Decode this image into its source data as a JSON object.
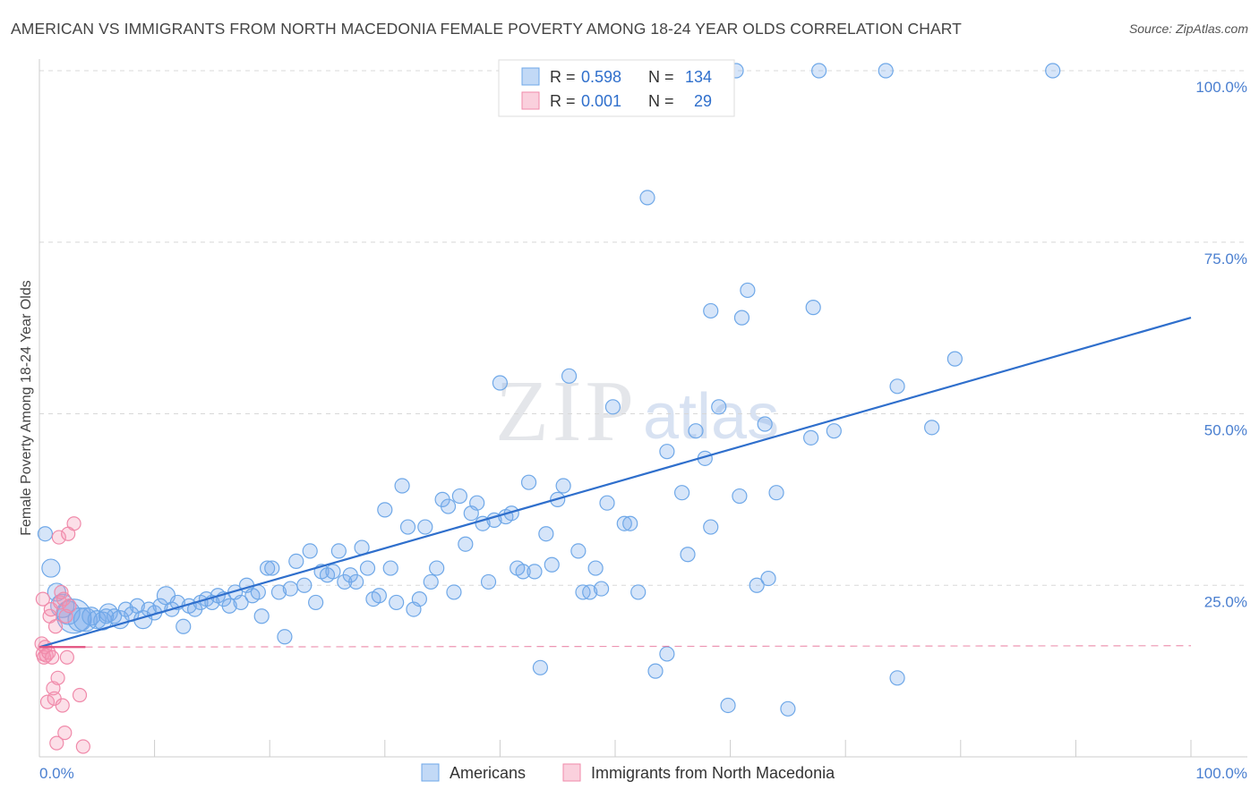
{
  "title": "AMERICAN VS IMMIGRANTS FROM NORTH MACEDONIA FEMALE POVERTY AMONG 18-24 YEAR OLDS CORRELATION CHART",
  "source": "Source: ZipAtlas.com",
  "watermark": {
    "zip": "ZIP",
    "atlas": "atlas"
  },
  "colors": {
    "blue": "#6fa8e8",
    "blue_fill": "rgba(120,170,235,0.30)",
    "blue_line": "#2f6fcc",
    "pink": "#f08aaa",
    "pink_fill": "rgba(245,150,180,0.30)",
    "pink_line": "#e2507f",
    "axis_text": "#4a7fd0",
    "grid": "#d8d8d8"
  },
  "legend": {
    "rows": [
      {
        "r_label": "R =",
        "r_value": "0.598",
        "n_label": "N =",
        "n_value": "134"
      },
      {
        "r_label": "R =",
        "r_value": "0.001",
        "n_label": "N =",
        "n_value": "29"
      }
    ]
  },
  "bottom_legend": {
    "items": [
      "Americans",
      "Immigrants from North Macedonia"
    ]
  },
  "chart_data": {
    "type": "scatter",
    "title": "AMERICAN VS IMMIGRANTS FROM NORTH MACEDONIA FEMALE POVERTY AMONG 18-24 YEAR OLDS CORRELATION CHART",
    "xlabel": "",
    "ylabel": "Female Poverty Among 18-24 Year Olds",
    "xlim": [
      0,
      100
    ],
    "ylim": [
      0,
      100
    ],
    "x_tick_labels": [
      "0.0%",
      "100.0%"
    ],
    "y_tick_labels": [
      {
        "value": 25,
        "label": "25.0%"
      },
      {
        "value": 50,
        "label": "50.0%"
      },
      {
        "value": 75,
        "label": "75.0%"
      },
      {
        "value": 100,
        "label": "100.0%"
      }
    ],
    "grid": true,
    "series": [
      {
        "name": "Americans",
        "R": 0.598,
        "N": 134,
        "trend": {
          "x": [
            0,
            100
          ],
          "y": [
            16.0,
            64.0
          ]
        },
        "points": [
          {
            "x": 0.5,
            "y": 32.5,
            "s": "s"
          },
          {
            "x": 1.0,
            "y": 27.5,
            "s": "m"
          },
          {
            "x": 1.5,
            "y": 24.0,
            "s": "m"
          },
          {
            "x": 2.0,
            "y": 22.0,
            "s": "l"
          },
          {
            "x": 2.5,
            "y": 21.0,
            "s": "l"
          },
          {
            "x": 3.0,
            "y": 20.5,
            "s": "xl"
          },
          {
            "x": 3.5,
            "y": 20.0,
            "s": "l"
          },
          {
            "x": 4.0,
            "y": 20.0,
            "s": "l"
          },
          {
            "x": 4.5,
            "y": 20.5,
            "s": "m"
          },
          {
            "x": 5.0,
            "y": 20.0,
            "s": "m"
          },
          {
            "x": 5.5,
            "y": 19.8,
            "s": "m"
          },
          {
            "x": 6.0,
            "y": 21.0,
            "s": "m"
          },
          {
            "x": 6.5,
            "y": 20.5,
            "s": "s"
          },
          {
            "x": 7.0,
            "y": 20.0,
            "s": "m"
          },
          {
            "x": 7.5,
            "y": 21.5,
            "s": "s"
          },
          {
            "x": 8.0,
            "y": 20.8,
            "s": "s"
          },
          {
            "x": 8.5,
            "y": 22.0,
            "s": "s"
          },
          {
            "x": 9.0,
            "y": 20.0,
            "s": "m"
          },
          {
            "x": 9.5,
            "y": 21.5,
            "s": "s"
          },
          {
            "x": 10.0,
            "y": 21.0,
            "s": "s"
          },
          {
            "x": 10.5,
            "y": 22.0,
            "s": "s"
          },
          {
            "x": 11.0,
            "y": 23.5,
            "s": "m"
          },
          {
            "x": 11.5,
            "y": 21.5,
            "s": "s"
          },
          {
            "x": 12.0,
            "y": 22.5,
            "s": "s"
          },
          {
            "x": 12.5,
            "y": 19.0,
            "s": "s"
          },
          {
            "x": 13.0,
            "y": 22.0,
            "s": "s"
          },
          {
            "x": 13.5,
            "y": 21.5,
            "s": "s"
          },
          {
            "x": 14.0,
            "y": 22.5,
            "s": "s"
          },
          {
            "x": 14.5,
            "y": 23.0,
            "s": "s"
          },
          {
            "x": 15.0,
            "y": 22.5,
            "s": "s"
          },
          {
            "x": 15.5,
            "y": 23.5,
            "s": "s"
          },
          {
            "x": 16.0,
            "y": 23.0,
            "s": "s"
          },
          {
            "x": 16.5,
            "y": 22.0,
            "s": "s"
          },
          {
            "x": 17.0,
            "y": 24.0,
            "s": "s"
          },
          {
            "x": 17.5,
            "y": 22.5,
            "s": "s"
          },
          {
            "x": 18.0,
            "y": 25.0,
            "s": "s"
          },
          {
            "x": 18.5,
            "y": 23.5,
            "s": "s"
          },
          {
            "x": 19.0,
            "y": 24.0,
            "s": "s"
          },
          {
            "x": 19.3,
            "y": 20.5,
            "s": "s"
          },
          {
            "x": 19.8,
            "y": 27.5,
            "s": "s"
          },
          {
            "x": 20.2,
            "y": 27.5,
            "s": "s"
          },
          {
            "x": 20.8,
            "y": 24.0,
            "s": "s"
          },
          {
            "x": 21.3,
            "y": 17.5,
            "s": "s"
          },
          {
            "x": 21.8,
            "y": 24.5,
            "s": "s"
          },
          {
            "x": 22.3,
            "y": 28.5,
            "s": "s"
          },
          {
            "x": 23.0,
            "y": 25.0,
            "s": "s"
          },
          {
            "x": 23.5,
            "y": 30.0,
            "s": "s"
          },
          {
            "x": 24.0,
            "y": 22.5,
            "s": "s"
          },
          {
            "x": 24.5,
            "y": 27.0,
            "s": "s"
          },
          {
            "x": 25.0,
            "y": 26.5,
            "s": "s"
          },
          {
            "x": 25.5,
            "y": 27.0,
            "s": "s"
          },
          {
            "x": 26.0,
            "y": 30.0,
            "s": "s"
          },
          {
            "x": 26.5,
            "y": 25.5,
            "s": "s"
          },
          {
            "x": 27.0,
            "y": 26.5,
            "s": "s"
          },
          {
            "x": 27.5,
            "y": 25.5,
            "s": "s"
          },
          {
            "x": 28.0,
            "y": 30.5,
            "s": "s"
          },
          {
            "x": 28.5,
            "y": 27.5,
            "s": "s"
          },
          {
            "x": 29.0,
            "y": 23.0,
            "s": "s"
          },
          {
            "x": 29.5,
            "y": 23.5,
            "s": "s"
          },
          {
            "x": 30.0,
            "y": 36.0,
            "s": "s"
          },
          {
            "x": 30.5,
            "y": 27.5,
            "s": "s"
          },
          {
            "x": 31.0,
            "y": 22.5,
            "s": "s"
          },
          {
            "x": 31.5,
            "y": 39.5,
            "s": "s"
          },
          {
            "x": 32.0,
            "y": 33.5,
            "s": "s"
          },
          {
            "x": 32.5,
            "y": 21.5,
            "s": "s"
          },
          {
            "x": 33.0,
            "y": 23.0,
            "s": "s"
          },
          {
            "x": 33.5,
            "y": 33.5,
            "s": "s"
          },
          {
            "x": 34.0,
            "y": 25.5,
            "s": "s"
          },
          {
            "x": 34.5,
            "y": 27.5,
            "s": "s"
          },
          {
            "x": 35.0,
            "y": 37.5,
            "s": "s"
          },
          {
            "x": 35.5,
            "y": 36.5,
            "s": "s"
          },
          {
            "x": 36.0,
            "y": 24.0,
            "s": "s"
          },
          {
            "x": 36.5,
            "y": 38.0,
            "s": "s"
          },
          {
            "x": 37.0,
            "y": 31.0,
            "s": "s"
          },
          {
            "x": 37.5,
            "y": 35.5,
            "s": "s"
          },
          {
            "x": 38.0,
            "y": 37.0,
            "s": "s"
          },
          {
            "x": 38.5,
            "y": 34.0,
            "s": "s"
          },
          {
            "x": 39.0,
            "y": 25.5,
            "s": "s"
          },
          {
            "x": 39.5,
            "y": 34.5,
            "s": "s"
          },
          {
            "x": 40.0,
            "y": 54.5,
            "s": "s"
          },
          {
            "x": 40.5,
            "y": 35.0,
            "s": "s"
          },
          {
            "x": 41.0,
            "y": 35.5,
            "s": "s"
          },
          {
            "x": 41.5,
            "y": 27.5,
            "s": "s"
          },
          {
            "x": 42.0,
            "y": 27.0,
            "s": "s"
          },
          {
            "x": 42.5,
            "y": 40.0,
            "s": "s"
          },
          {
            "x": 43.0,
            "y": 27.0,
            "s": "s"
          },
          {
            "x": 43.5,
            "y": 13.0,
            "s": "s"
          },
          {
            "x": 44.0,
            "y": 32.5,
            "s": "s"
          },
          {
            "x": 44.5,
            "y": 28.0,
            "s": "s"
          },
          {
            "x": 45.0,
            "y": 37.5,
            "s": "s"
          },
          {
            "x": 45.5,
            "y": 39.5,
            "s": "s"
          },
          {
            "x": 46.0,
            "y": 55.5,
            "s": "s"
          },
          {
            "x": 46.8,
            "y": 30.0,
            "s": "s"
          },
          {
            "x": 47.2,
            "y": 24.0,
            "s": "s"
          },
          {
            "x": 47.8,
            "y": 24.0,
            "s": "s"
          },
          {
            "x": 48.3,
            "y": 27.5,
            "s": "s"
          },
          {
            "x": 48.8,
            "y": 24.5,
            "s": "s"
          },
          {
            "x": 49.3,
            "y": 37.0,
            "s": "s"
          },
          {
            "x": 49.8,
            "y": 51.0,
            "s": "s"
          },
          {
            "x": 50.8,
            "y": 34.0,
            "s": "s"
          },
          {
            "x": 51.3,
            "y": 34.0,
            "s": "s"
          },
          {
            "x": 52.0,
            "y": 24.0,
            "s": "s"
          },
          {
            "x": 52.8,
            "y": 81.5,
            "s": "s"
          },
          {
            "x": 53.5,
            "y": 12.5,
            "s": "s"
          },
          {
            "x": 54.5,
            "y": 44.5,
            "s": "s"
          },
          {
            "x": 54.5,
            "y": 15.0,
            "s": "s"
          },
          {
            "x": 55.8,
            "y": 38.5,
            "s": "s"
          },
          {
            "x": 56.3,
            "y": 29.5,
            "s": "s"
          },
          {
            "x": 57.0,
            "y": 47.5,
            "s": "s"
          },
          {
            "x": 57.8,
            "y": 43.5,
            "s": "s"
          },
          {
            "x": 58.3,
            "y": 65.0,
            "s": "s"
          },
          {
            "x": 58.3,
            "y": 33.5,
            "s": "s"
          },
          {
            "x": 59.0,
            "y": 51.0,
            "s": "s"
          },
          {
            "x": 59.8,
            "y": 7.5,
            "s": "s"
          },
          {
            "x": 60.5,
            "y": 100.0,
            "s": "s"
          },
          {
            "x": 60.8,
            "y": 38.0,
            "s": "s"
          },
          {
            "x": 61.0,
            "y": 64.0,
            "s": "s"
          },
          {
            "x": 61.5,
            "y": 68.0,
            "s": "s"
          },
          {
            "x": 62.3,
            "y": 25.0,
            "s": "s"
          },
          {
            "x": 63.0,
            "y": 48.5,
            "s": "s"
          },
          {
            "x": 63.3,
            "y": 26.0,
            "s": "s"
          },
          {
            "x": 64.0,
            "y": 38.5,
            "s": "s"
          },
          {
            "x": 65.0,
            "y": 7.0,
            "s": "s"
          },
          {
            "x": 67.0,
            "y": 46.5,
            "s": "s"
          },
          {
            "x": 67.2,
            "y": 65.5,
            "s": "s"
          },
          {
            "x": 67.7,
            "y": 100.0,
            "s": "s"
          },
          {
            "x": 69.0,
            "y": 47.5,
            "s": "s"
          },
          {
            "x": 73.5,
            "y": 100.0,
            "s": "s"
          },
          {
            "x": 74.5,
            "y": 11.5,
            "s": "s"
          },
          {
            "x": 74.5,
            "y": 54.0,
            "s": "s"
          },
          {
            "x": 77.5,
            "y": 48.0,
            "s": "s"
          },
          {
            "x": 79.5,
            "y": 58.0,
            "s": "s"
          },
          {
            "x": 88.0,
            "y": 100.0,
            "s": "s"
          },
          {
            "x": 5.8,
            "y": 20.5,
            "s": "s"
          }
        ]
      },
      {
        "name": "Immigrants from North Macedonia",
        "R": 0.001,
        "N": 29,
        "trend": {
          "x": [
            0,
            100
          ],
          "y": [
            16.0,
            16.2
          ]
        },
        "points": [
          {
            "x": 0.2,
            "y": 16.5
          },
          {
            "x": 0.3,
            "y": 15.0
          },
          {
            "x": 0.4,
            "y": 14.5
          },
          {
            "x": 0.5,
            "y": 16.0
          },
          {
            "x": 0.6,
            "y": 14.8
          },
          {
            "x": 0.7,
            "y": 8.0
          },
          {
            "x": 0.8,
            "y": 15.2
          },
          {
            "x": 0.9,
            "y": 20.5
          },
          {
            "x": 1.0,
            "y": 21.5
          },
          {
            "x": 1.1,
            "y": 14.5
          },
          {
            "x": 1.2,
            "y": 10.0
          },
          {
            "x": 1.3,
            "y": 8.5
          },
          {
            "x": 1.4,
            "y": 19.0
          },
          {
            "x": 1.5,
            "y": 2.0
          },
          {
            "x": 1.6,
            "y": 11.5
          },
          {
            "x": 1.7,
            "y": 32.0
          },
          {
            "x": 1.8,
            "y": 22.5
          },
          {
            "x": 1.9,
            "y": 24.0
          },
          {
            "x": 2.0,
            "y": 7.5
          },
          {
            "x": 2.1,
            "y": 23.0
          },
          {
            "x": 2.2,
            "y": 3.5
          },
          {
            "x": 2.3,
            "y": 20.5
          },
          {
            "x": 2.4,
            "y": 14.5
          },
          {
            "x": 2.5,
            "y": 32.5
          },
          {
            "x": 2.6,
            "y": 22.0
          },
          {
            "x": 3.0,
            "y": 34.0
          },
          {
            "x": 3.5,
            "y": 9.0
          },
          {
            "x": 3.8,
            "y": 1.5
          },
          {
            "x": 0.3,
            "y": 23.0
          }
        ]
      }
    ]
  }
}
